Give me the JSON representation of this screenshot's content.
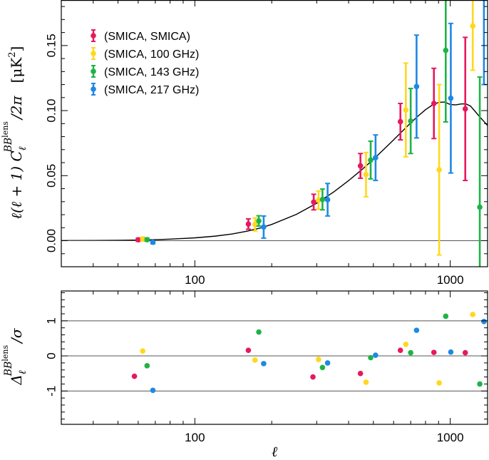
{
  "chart_data": [
    {
      "type": "scatter",
      "x_scale": "log",
      "xlim": [
        30,
        1400
      ],
      "ylim": [
        -0.02,
        0.185
      ],
      "x_ticks": [
        {
          "value": 100,
          "label": "100"
        },
        {
          "value": 1000,
          "label": "1000"
        }
      ],
      "y_ticks": [
        {
          "value": 0.0,
          "label": "0.00"
        },
        {
          "value": 0.05,
          "label": "0.05"
        },
        {
          "value": 0.1,
          "label": "0.10"
        },
        {
          "value": 0.15,
          "label": "0.15"
        }
      ],
      "ylabel_parts": {
        "main": "ℓ(ℓ + 1) C",
        "sub": "ℓ",
        "sup": "BB",
        "supsup": "lens",
        "tail": "/2π"
      },
      "unit_parts": {
        "open": "[μK",
        "sup": "2",
        "close": "]"
      },
      "legend_position": "top-left",
      "model_curve": {
        "x": [
          30,
          40,
          50,
          60,
          70,
          80,
          100,
          120,
          140,
          160,
          180,
          200,
          250,
          300,
          350,
          400,
          450,
          500,
          550,
          600,
          650,
          700,
          750,
          800,
          850,
          900,
          950,
          1000,
          1050,
          1100,
          1150,
          1200,
          1250,
          1300,
          1350,
          1400
        ],
        "y": [
          0.0001,
          0.0002,
          0.0003,
          0.0005,
          0.0008,
          0.0012,
          0.0022,
          0.0035,
          0.0052,
          0.0073,
          0.0097,
          0.0125,
          0.0203,
          0.0288,
          0.0375,
          0.0462,
          0.0545,
          0.0625,
          0.0703,
          0.0775,
          0.0843,
          0.0905,
          0.096,
          0.1007,
          0.1042,
          0.1063,
          0.1066,
          0.1047,
          0.1044,
          0.1051,
          0.1052,
          0.1035,
          0.0995,
          0.0955,
          0.092,
          0.0885
        ]
      },
      "series": [
        {
          "name": "(SMICA, SMICA)",
          "color": "#e6195e",
          "points": [
            {
              "x": 60,
              "y": 0.0007,
              "err": 0.0012
            },
            {
              "x": 162,
              "y": 0.0128,
              "err": 0.004
            },
            {
              "x": 292,
              "y": 0.0297,
              "err": 0.006
            },
            {
              "x": 445,
              "y": 0.0575,
              "err": 0.0095
            },
            {
              "x": 638,
              "y": 0.0915,
              "err": 0.014
            },
            {
              "x": 863,
              "y": 0.1055,
              "err": 0.027
            },
            {
              "x": 1145,
              "y": 0.1013,
              "err": 0.055
            }
          ]
        },
        {
          "name": "(SMICA, 100 GHz)",
          "color": "#ffd81e",
          "points": [
            {
              "x": 62.5,
              "y": 0.0013,
              "err": 0.0015
            },
            {
              "x": 172,
              "y": 0.0125,
              "err": 0.005
            },
            {
              "x": 305,
              "y": 0.0312,
              "err": 0.007
            },
            {
              "x": 468,
              "y": 0.0508,
              "err": 0.017
            },
            {
              "x": 670,
              "y": 0.1005,
              "err": 0.036
            },
            {
              "x": 905,
              "y": 0.0545,
              "err": 0.0655
            },
            {
              "x": 1225,
              "y": 0.165,
              "err": 0.034
            }
          ]
        },
        {
          "name": "(SMICA, 143 GHz)",
          "color": "#1fb346",
          "points": [
            {
              "x": 65,
              "y": 0.0008,
              "err": 0.0012
            },
            {
              "x": 178,
              "y": 0.0152,
              "err": 0.004
            },
            {
              "x": 316,
              "y": 0.0317,
              "err": 0.008
            },
            {
              "x": 488,
              "y": 0.062,
              "err": 0.0145
            },
            {
              "x": 700,
              "y": 0.092,
              "err": 0.025
            },
            {
              "x": 960,
              "y": 0.1463,
              "err": 0.055
            },
            {
              "x": 1305,
              "y": 0.0258,
              "err": 0.1
            }
          ]
        },
        {
          "name": "(SMICA, 217 GHz)",
          "color": "#1e88e5",
          "points": [
            {
              "x": 68.5,
              "y": -0.0012,
              "err": 0.0012
            },
            {
              "x": 186,
              "y": 0.0105,
              "err": 0.0085
            },
            {
              "x": 331,
              "y": 0.0315,
              "err": 0.0125
            },
            {
              "x": 510,
              "y": 0.0638,
              "err": 0.0175
            },
            {
              "x": 738,
              "y": 0.1185,
              "err": 0.0395
            },
            {
              "x": 1005,
              "y": 0.1095,
              "err": 0.0575
            },
            {
              "x": 1355,
              "y": 0.21,
              "err": 0.09
            }
          ]
        }
      ]
    },
    {
      "type": "scatter",
      "x_scale": "log",
      "xlim": [
        30,
        1400
      ],
      "ylim": [
        -1.95,
        1.85
      ],
      "x_ticks": [
        {
          "value": 100,
          "label": "100"
        },
        {
          "value": 1000,
          "label": "1000"
        }
      ],
      "y_ticks": [
        {
          "value": -1,
          "label": "-1"
        },
        {
          "value": 0,
          "label": "0"
        },
        {
          "value": 1,
          "label": "1"
        }
      ],
      "hlines": [
        -1,
        0,
        1
      ],
      "xlabel": "ℓ",
      "ylabel_parts": {
        "main": "Δ",
        "sub": "ℓ",
        "sup": "BB",
        "supsup": "lens",
        "tail": "/σ"
      },
      "series": [
        {
          "name": "(SMICA, SMICA)",
          "color": "#e6195e",
          "points": [
            {
              "x": 58,
              "y": -0.58
            },
            {
              "x": 162,
              "y": 0.16
            },
            {
              "x": 290,
              "y": -0.6
            },
            {
              "x": 445,
              "y": -0.5
            },
            {
              "x": 638,
              "y": 0.16
            },
            {
              "x": 863,
              "y": 0.1
            },
            {
              "x": 1145,
              "y": 0.09
            }
          ]
        },
        {
          "name": "(SMICA, 100 GHz)",
          "color": "#ffd81e",
          "points": [
            {
              "x": 62.5,
              "y": 0.14
            },
            {
              "x": 172,
              "y": -0.12
            },
            {
              "x": 305,
              "y": -0.1
            },
            {
              "x": 468,
              "y": -0.75
            },
            {
              "x": 670,
              "y": 0.33
            },
            {
              "x": 905,
              "y": -0.77
            },
            {
              "x": 1225,
              "y": 1.18
            }
          ]
        },
        {
          "name": "(SMICA, 143 GHz)",
          "color": "#1fb346",
          "points": [
            {
              "x": 65,
              "y": -0.28
            },
            {
              "x": 178,
              "y": 0.68
            },
            {
              "x": 316,
              "y": -0.33
            },
            {
              "x": 488,
              "y": -0.05
            },
            {
              "x": 700,
              "y": 0.09
            },
            {
              "x": 960,
              "y": 1.13
            },
            {
              "x": 1305,
              "y": -0.8
            }
          ]
        },
        {
          "name": "(SMICA, 217 GHz)",
          "color": "#1e88e5",
          "points": [
            {
              "x": 68.5,
              "y": -0.98
            },
            {
              "x": 186,
              "y": -0.22
            },
            {
              "x": 331,
              "y": -0.2
            },
            {
              "x": 510,
              "y": 0.02
            },
            {
              "x": 738,
              "y": 0.73
            },
            {
              "x": 1005,
              "y": 0.11
            },
            {
              "x": 1355,
              "y": 0.98
            }
          ]
        }
      ]
    }
  ]
}
